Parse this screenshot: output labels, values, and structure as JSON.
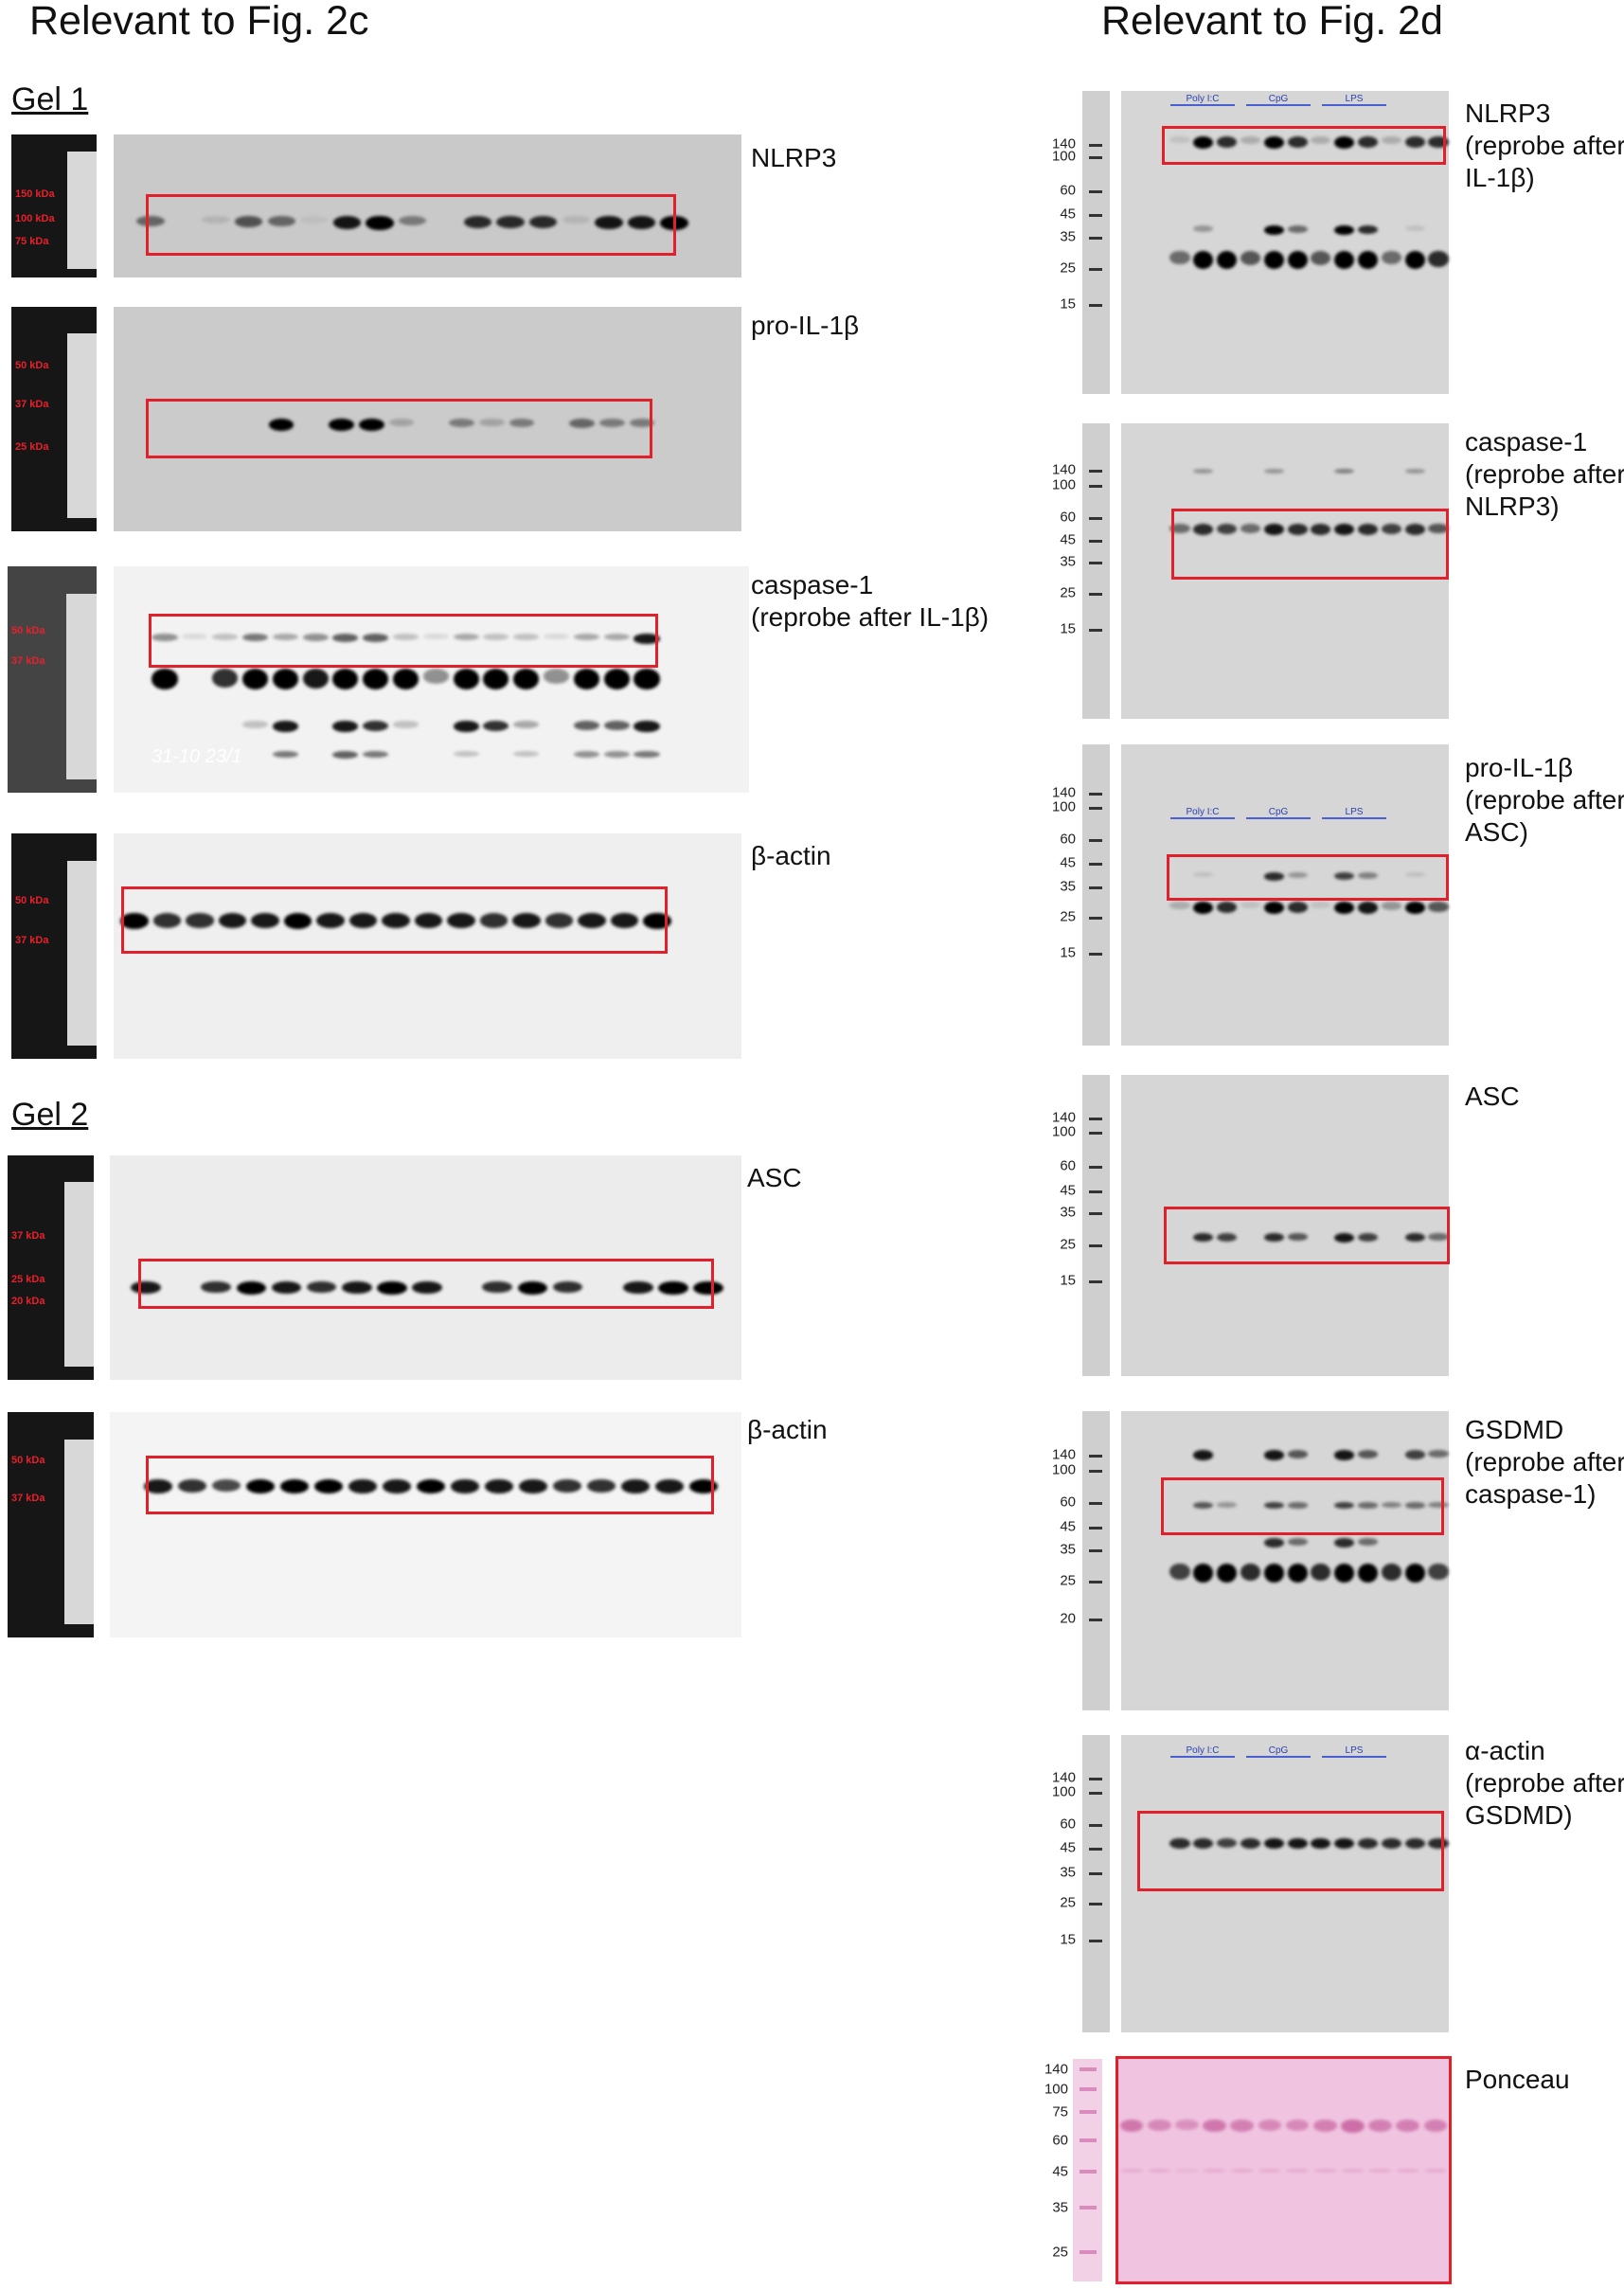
{
  "headings": {
    "left": "Relevant to Fig. 2c",
    "right": "Relevant to Fig. 2d"
  },
  "gels": {
    "gel1": "Gel 1",
    "gel2": "Gel 2"
  },
  "left_panels": [
    {
      "label": [
        "NLRP3"
      ],
      "markers": [
        "150 kDa",
        "100 kDa",
        "75 kDa"
      ]
    },
    {
      "label": [
        "pro-IL-1β"
      ],
      "markers": [
        "50 kDa",
        "37 kDa",
        "25 kDa"
      ]
    },
    {
      "label": [
        "caspase-1",
        "(reprobe after IL-1β)"
      ],
      "markers": [
        "50 kDa",
        "37 kDa"
      ],
      "note": "31-10 23/1"
    },
    {
      "label": [
        "β-actin"
      ],
      "markers": [
        "50 kDa",
        "37 kDa"
      ]
    },
    {
      "label": [
        "ASC"
      ],
      "markers": [
        "37 kDa",
        "25 kDa",
        "20 kDa"
      ]
    },
    {
      "label": [
        "β-actin"
      ],
      "markers": [
        "50 kDa",
        "37 kDa"
      ]
    }
  ],
  "right_panels": [
    {
      "label": [
        "NLRP3",
        "(reprobe after",
        "IL-1β)"
      ],
      "ticks": [
        "140",
        "100",
        "60",
        "45",
        "35",
        "25",
        "15"
      ],
      "lane_groups": [
        "Poly I:C",
        "CpG",
        "LPS"
      ]
    },
    {
      "label": [
        "caspase-1",
        "(reprobe after",
        "NLRP3)"
      ],
      "ticks": [
        "140",
        "100",
        "60",
        "45",
        "35",
        "25",
        "15"
      ]
    },
    {
      "label": [
        "pro-IL-1β",
        "(reprobe after",
        "ASC)"
      ],
      "ticks": [
        "140",
        "100",
        "60",
        "45",
        "35",
        "25",
        "15"
      ],
      "lane_groups": [
        "Poly I:C",
        "CpG",
        "LPS"
      ]
    },
    {
      "label": [
        "ASC"
      ],
      "ticks": [
        "140",
        "100",
        "60",
        "45",
        "35",
        "25",
        "15"
      ]
    },
    {
      "label": [
        "GSDMD",
        "(reprobe after",
        "caspase-1)"
      ],
      "ticks": [
        "140",
        "100",
        "60",
        "45",
        "35",
        "25",
        "20"
      ]
    },
    {
      "label": [
        "α-actin",
        "(reprobe after",
        "GSDMD)"
      ],
      "ticks": [
        "140",
        "100",
        "60",
        "45",
        "35",
        "25",
        "15"
      ],
      "lane_groups": [
        "Poly I:C",
        "CpG",
        "LPS"
      ]
    },
    {
      "label": [
        "Ponceau"
      ],
      "ticks": [
        "140",
        "100",
        "75",
        "60",
        "45",
        "35",
        "25"
      ]
    }
  ],
  "colors": {
    "highlight_box": "#e0202a",
    "marker_text": "#e8202a",
    "lane_group_text": "#2a3fb0",
    "ponceau": "#f0c4e0"
  }
}
